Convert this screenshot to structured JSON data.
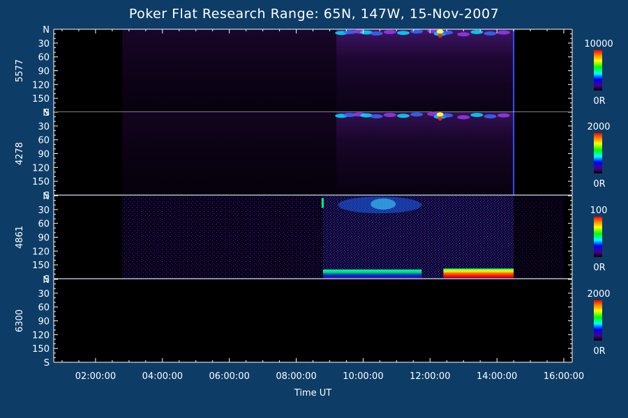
{
  "chart_data": {
    "type": "heatmap",
    "title": "Poker Flat Research Range: 65N, 147W, 15-Nov-2007",
    "xlabel": "Time UT",
    "x_ticks": [
      "02:00:00",
      "04:00:00",
      "06:00:00",
      "08:00:00",
      "10:00:00",
      "12:00:00",
      "14:00:00",
      "16:00:00"
    ],
    "x_range_hours": [
      0.75,
      16.25
    ],
    "y_ticks": [
      "N",
      "30",
      "60",
      "90",
      "120",
      "150",
      "S"
    ],
    "y_range_deg": [
      0,
      180
    ],
    "panels": [
      {
        "wavelength": "5577",
        "scale_max": "10000",
        "scale_min": "0R",
        "data_start_hours": 2.8,
        "data_end_hours": 14.5,
        "brightest_hours": [
          9.2,
          14.5
        ]
      },
      {
        "wavelength": "4278",
        "scale_max": "2000",
        "scale_min": "0R",
        "data_start_hours": 2.8,
        "data_end_hours": 14.5,
        "brightest_hours": [
          9.2,
          14.5
        ]
      },
      {
        "wavelength": "4861",
        "scale_max": "100",
        "scale_min": "0R",
        "data_start_hours": 2.8,
        "data_end_hours": 16.0,
        "brightest_hours": [
          8.8,
          14.5
        ]
      },
      {
        "wavelength": "6300",
        "scale_max": "2000",
        "scale_min": "0R",
        "data_start_hours": null,
        "data_end_hours": null
      }
    ],
    "colormap": [
      "#000000",
      "#2a0050",
      "#4b0082",
      "#0000ff",
      "#00ffff",
      "#00ff00",
      "#ffff00",
      "#ff8000",
      "#ff0000"
    ]
  }
}
